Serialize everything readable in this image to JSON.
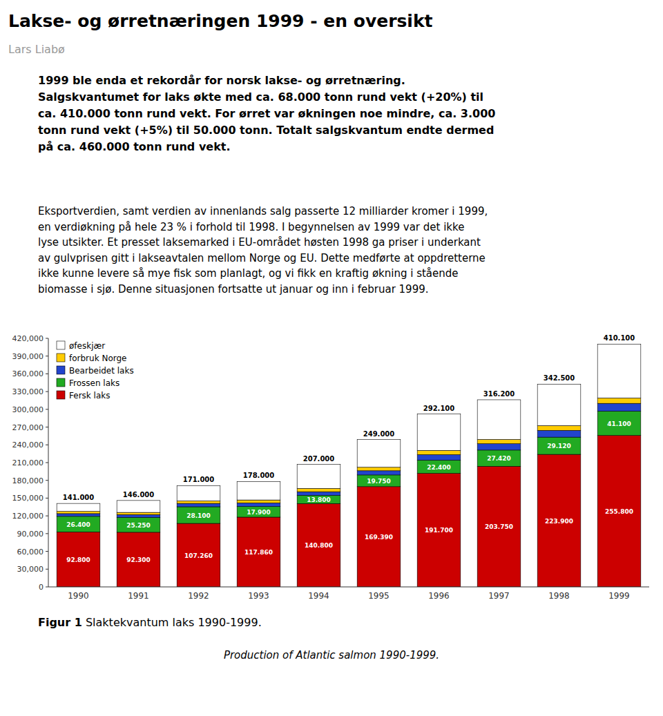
{
  "title": "Lakse- og ørretnæringen 1999 - en oversikt",
  "author": "Lars Liabø",
  "paragraphs": [
    "1999 ble enda et rekordår for norsk lakse- og ørretnæring.\nSalgskvantumet for laks økte med ca. 68.000 tonn rund vekt (+20%) til\nca. 410.000 tonn rund vekt. For ørret var økningen noe mindre, ca. 3.000\ntonn rund vekt (+5%) til 50.000 tonn. Totalt salgskvantum endte dermed\npå ca. 460.000 tonn rund vekt.",
    "Eksportverdien, samt verdien av innenlands salg passerte 12 milliarder kromer i 1999,\nen verdiøkning på hele 23 % i forhold til 1998. I begynnelsen av 1999 var det ikke\nlyse utsikter. Et presset laksemarked i EU-området høsten 1998 ga priser i underkant\nav gulvprisen gitt i lakseavtalen mellom Norge og EU. Dette medførte at oppdretterne\nikke kunne levere så mye fisk som planlagt, og vi fikk en kraftig økning i stående\nbiomasse i sjø. Denne situasjonen fortsatte ut januar og inn i februar 1999."
  ],
  "caption": {
    "label": "Figur 1",
    "text": " Slaktekvantum laks 1990-1999.",
    "subtitle": "Production of Atlantic salmon 1990-1999."
  },
  "chart_data": {
    "type": "bar",
    "stacked": true,
    "grid": false,
    "legend": "upper left",
    "categories": [
      "1990",
      "1991",
      "1992",
      "1993",
      "1994",
      "1995",
      "1996",
      "1997",
      "1998",
      "1999"
    ],
    "series": [
      {
        "name": "Fersk laks",
        "color": "#cc0000",
        "data_labels": true,
        "values": [
          92800,
          92300,
          107260,
          117860,
          140800,
          169390,
          191700,
          203750,
          223900,
          255800
        ],
        "value_labels": [
          "92.800",
          "92.300",
          "107.260",
          "117.860",
          "140.800",
          "169.390",
          "191.700",
          "203.750",
          "223.900",
          "255.800"
        ]
      },
      {
        "name": "Frossen laks",
        "color": "#22aa22",
        "data_labels": true,
        "values": [
          26400,
          25250,
          28100,
          17900,
          13800,
          19750,
          22400,
          27420,
          29120,
          41100
        ],
        "value_labels": [
          "26.400",
          "25.250",
          "28.100",
          "17.900",
          "13.800",
          "19.750",
          "22.400",
          "27.420",
          "29.120",
          "41.100"
        ]
      },
      {
        "name": "Bearbeidet laks",
        "color": "#2244cc",
        "values": [
          4600,
          4550,
          5700,
          6100,
          6200,
          7100,
          9300,
          10680,
          11480,
          13200
        ]
      },
      {
        "name": "forbruk Norge",
        "color": "#ffcc00",
        "values": [
          3800,
          3750,
          4100,
          5000,
          5600,
          5860,
          7200,
          7250,
          8000,
          9000
        ]
      },
      {
        "name": "øfeskjær",
        "color": "#ffffff",
        "values": [
          13400,
          20150,
          25840,
          31140,
          40600,
          46900,
          61500,
          67100,
          70000,
          91000
        ]
      }
    ],
    "totals": [
      141000,
      146000,
      171000,
      178000,
      207000,
      249000,
      292100,
      316200,
      342500,
      410100
    ],
    "total_labels": [
      "141.000",
      "146.000",
      "171.000",
      "178.000",
      "207.000",
      "249.000",
      "292.100",
      "316.200",
      "342.500",
      "410.100"
    ],
    "ylim": [
      0,
      420000
    ],
    "yticks": [
      0,
      {
        "value": 30000,
        "label": "30,000"
      },
      {
        "value": 60000,
        "label": "60,000"
      },
      {
        "value": 90000,
        "label": "90,000"
      },
      {
        "value": 120000,
        "label": "120,000"
      },
      {
        "value": 150000,
        "label": "150,000"
      },
      {
        "value": 180000,
        "label": "180,000"
      },
      {
        "value": 210000,
        "label": "210,000"
      },
      {
        "value": 240000,
        "label": "240,000"
      },
      {
        "value": 270000,
        "label": "270,000"
      },
      {
        "value": 300000,
        "label": "300,000"
      },
      {
        "value": 330000,
        "label": "330,000"
      },
      {
        "value": 360000,
        "label": "360,000"
      },
      {
        "value": 390000,
        "label": "390,000"
      },
      {
        "value": 420000,
        "label": "420,000"
      }
    ]
  }
}
